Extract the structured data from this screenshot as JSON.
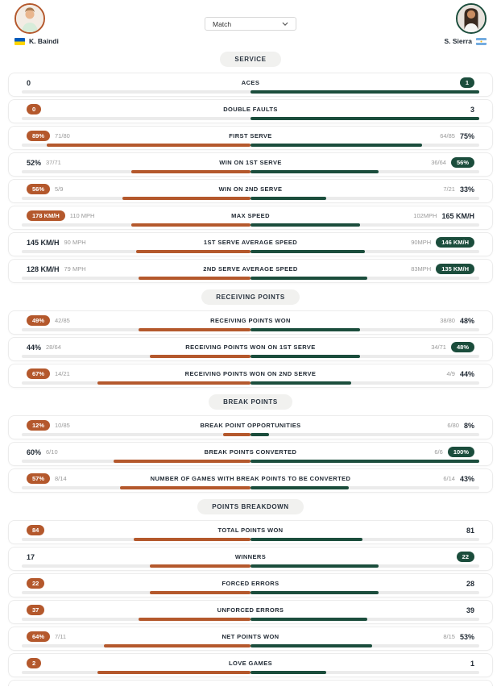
{
  "header": {
    "left_player": {
      "name": "K. Baindi",
      "flag": "ukraine-flag"
    },
    "right_player": {
      "name": "S. Sierra",
      "flag": "argentina-flag"
    },
    "match_select": {
      "value": "Match"
    }
  },
  "colors": {
    "left_accent": "#b4582c",
    "right_accent": "#1b4d3c",
    "track": "#ebebeb",
    "section_pill_bg": "#f1f1ef",
    "text_dark": "#222b35",
    "text_gray": "#9a9a9a"
  },
  "sections": [
    {
      "title": "SERVICE",
      "rows": [
        {
          "label": "ACES",
          "left": {
            "value": "0",
            "secondary": null,
            "highlight": false
          },
          "right": {
            "value": "1",
            "secondary": null,
            "highlight": true
          },
          "left_bar_pct": 0,
          "right_bar_pct": 100
        },
        {
          "label": "DOUBLE FAULTS",
          "left": {
            "value": "0",
            "secondary": null,
            "highlight": true
          },
          "right": {
            "value": "3",
            "secondary": null,
            "highlight": false
          },
          "left_bar_pct": 0,
          "right_bar_pct": 100
        },
        {
          "label": "FIRST SERVE",
          "left": {
            "value": "89%",
            "secondary": "71/80",
            "highlight": true
          },
          "right": {
            "value": "75%",
            "secondary": "64/85",
            "highlight": false
          },
          "left_bar_pct": 89,
          "right_bar_pct": 75
        },
        {
          "label": "WIN ON 1ST SERVE",
          "left": {
            "value": "52%",
            "secondary": "37/71",
            "highlight": false
          },
          "right": {
            "value": "56%",
            "secondary": "36/64",
            "highlight": true
          },
          "left_bar_pct": 52,
          "right_bar_pct": 56
        },
        {
          "label": "WIN ON 2ND SERVE",
          "left": {
            "value": "56%",
            "secondary": "5/9",
            "highlight": true
          },
          "right": {
            "value": "33%",
            "secondary": "7/21",
            "highlight": false
          },
          "left_bar_pct": 56,
          "right_bar_pct": 33
        },
        {
          "label": "MAX SPEED",
          "left": {
            "value": "178 KM/H",
            "secondary": "110 MPH",
            "highlight": true
          },
          "right": {
            "value": "165 KM/H",
            "secondary": "102MPH",
            "highlight": false
          },
          "left_bar_pct": 52,
          "right_bar_pct": 48
        },
        {
          "label": "1ST SERVE AVERAGE SPEED",
          "left": {
            "value": "145 KM/H",
            "secondary": "90 MPH",
            "highlight": false
          },
          "right": {
            "value": "146 KM/H",
            "secondary": "90MPH",
            "highlight": true
          },
          "left_bar_pct": 50,
          "right_bar_pct": 50
        },
        {
          "label": "2ND SERVE AVERAGE SPEED",
          "left": {
            "value": "128 KM/H",
            "secondary": "79 MPH",
            "highlight": false
          },
          "right": {
            "value": "135 KM/H",
            "secondary": "83MPH",
            "highlight": true
          },
          "left_bar_pct": 49,
          "right_bar_pct": 51
        }
      ]
    },
    {
      "title": "RECEIVING POINTS",
      "rows": [
        {
          "label": "RECEIVING POINTS WON",
          "left": {
            "value": "49%",
            "secondary": "42/85",
            "highlight": true
          },
          "right": {
            "value": "48%",
            "secondary": "38/80",
            "highlight": false
          },
          "left_bar_pct": 49,
          "right_bar_pct": 48
        },
        {
          "label": "RECEIVING POINTS WON ON 1ST SERVE",
          "left": {
            "value": "44%",
            "secondary": "28/64",
            "highlight": false
          },
          "right": {
            "value": "48%",
            "secondary": "34/71",
            "highlight": true
          },
          "left_bar_pct": 44,
          "right_bar_pct": 48
        },
        {
          "label": "RECEIVING POINTS WON ON 2ND SERVE",
          "left": {
            "value": "67%",
            "secondary": "14/21",
            "highlight": true
          },
          "right": {
            "value": "44%",
            "secondary": "4/9",
            "highlight": false
          },
          "left_bar_pct": 67,
          "right_bar_pct": 44
        }
      ]
    },
    {
      "title": "BREAK POINTS",
      "rows": [
        {
          "label": "BREAK POINT OPPORTUNITIES",
          "left": {
            "value": "12%",
            "secondary": "10/85",
            "highlight": true
          },
          "right": {
            "value": "8%",
            "secondary": "6/80",
            "highlight": false
          },
          "left_bar_pct": 12,
          "right_bar_pct": 8
        },
        {
          "label": "BREAK POINTS CONVERTED",
          "left": {
            "value": "60%",
            "secondary": "6/10",
            "highlight": false
          },
          "right": {
            "value": "100%",
            "secondary": "6/6",
            "highlight": true
          },
          "left_bar_pct": 60,
          "right_bar_pct": 100
        },
        {
          "label": "NUMBER OF GAMES WITH BREAK POINTS TO BE CONVERTED",
          "left": {
            "value": "57%",
            "secondary": "8/14",
            "highlight": true
          },
          "right": {
            "value": "43%",
            "secondary": "6/14",
            "highlight": false
          },
          "left_bar_pct": 57,
          "right_bar_pct": 43
        }
      ]
    },
    {
      "title": "POINTS BREAKDOWN",
      "rows": [
        {
          "label": "TOTAL POINTS WON",
          "left": {
            "value": "84",
            "secondary": null,
            "highlight": true
          },
          "right": {
            "value": "81",
            "secondary": null,
            "highlight": false
          },
          "left_bar_pct": 51,
          "right_bar_pct": 49
        },
        {
          "label": "WINNERS",
          "left": {
            "value": "17",
            "secondary": null,
            "highlight": false
          },
          "right": {
            "value": "22",
            "secondary": null,
            "highlight": true
          },
          "left_bar_pct": 44,
          "right_bar_pct": 56
        },
        {
          "label": "FORCED ERRORS",
          "left": {
            "value": "22",
            "secondary": null,
            "highlight": true
          },
          "right": {
            "value": "28",
            "secondary": null,
            "highlight": false
          },
          "left_bar_pct": 44,
          "right_bar_pct": 56
        },
        {
          "label": "UNFORCED ERRORS",
          "left": {
            "value": "37",
            "secondary": null,
            "highlight": true
          },
          "right": {
            "value": "39",
            "secondary": null,
            "highlight": false
          },
          "left_bar_pct": 49,
          "right_bar_pct": 51
        },
        {
          "label": "NET POINTS WON",
          "left": {
            "value": "64%",
            "secondary": "7/11",
            "highlight": true
          },
          "right": {
            "value": "53%",
            "secondary": "8/15",
            "highlight": false
          },
          "left_bar_pct": 64,
          "right_bar_pct": 53
        },
        {
          "label": "LOVE GAMES",
          "left": {
            "value": "2",
            "secondary": null,
            "highlight": true
          },
          "right": {
            "value": "1",
            "secondary": null,
            "highlight": false
          },
          "left_bar_pct": 67,
          "right_bar_pct": 33
        }
      ]
    }
  ]
}
